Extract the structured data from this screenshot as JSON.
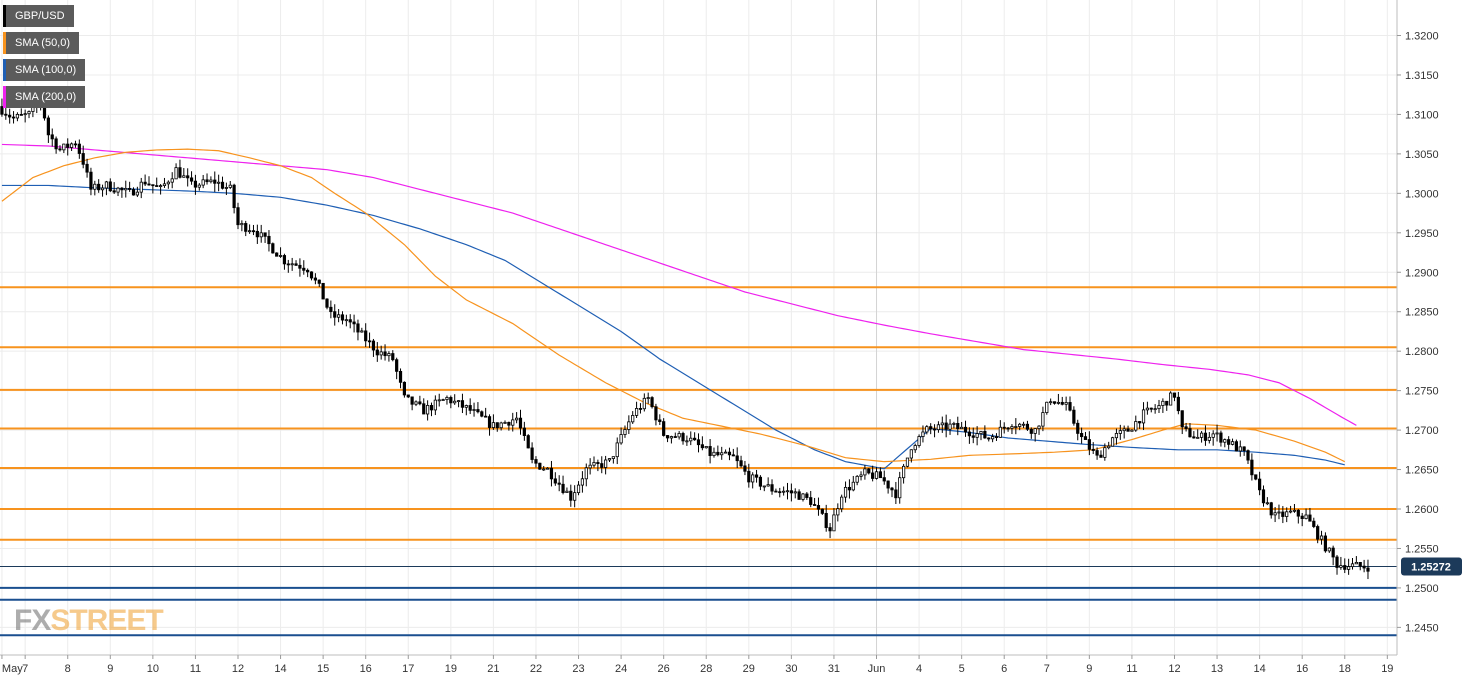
{
  "chart_data": {
    "type": "candlestick",
    "symbol": "GBP/USD",
    "legend": [
      {
        "label": "GBP/USD",
        "color": "#000000"
      },
      {
        "label": "SMA (50,0)",
        "color": "#f7931e"
      },
      {
        "label": "SMA (100,0)",
        "color": "#1f5fb4"
      },
      {
        "label": "SMA (200,0)",
        "color": "#ee22ee"
      }
    ],
    "ylim": [
      1.2415,
      1.3245
    ],
    "y_ticks": [
      "1.3200",
      "1.3150",
      "1.3100",
      "1.3050",
      "1.3000",
      "1.2950",
      "1.2900",
      "1.2850",
      "1.2800",
      "1.2750",
      "1.2700",
      "1.2650",
      "1.2600",
      "1.2550",
      "1.2500",
      "1.2450"
    ],
    "x_ticks": [
      {
        "label": "May",
        "i": 0
      },
      {
        "label": "7",
        "i": 6
      },
      {
        "label": "8",
        "i": 17
      },
      {
        "label": "9",
        "i": 28
      },
      {
        "label": "10",
        "i": 39
      },
      {
        "label": "11",
        "i": 50
      },
      {
        "label": "12",
        "i": 61
      },
      {
        "label": "14",
        "i": 72
      },
      {
        "label": "15",
        "i": 83
      },
      {
        "label": "16",
        "i": 94
      },
      {
        "label": "17",
        "i": 105
      },
      {
        "label": "19",
        "i": 116
      },
      {
        "label": "21",
        "i": 127
      },
      {
        "label": "22",
        "i": 138
      },
      {
        "label": "23",
        "i": 149
      },
      {
        "label": "24",
        "i": 160
      },
      {
        "label": "26",
        "i": 171
      },
      {
        "label": "28",
        "i": 182
      },
      {
        "label": "29",
        "i": 193
      },
      {
        "label": "30",
        "i": 204
      },
      {
        "label": "31",
        "i": 215
      },
      {
        "label": "Jun",
        "i": 226
      },
      {
        "label": "4",
        "i": 237
      },
      {
        "label": "5",
        "i": 248
      },
      {
        "label": "6",
        "i": 259
      },
      {
        "label": "7",
        "i": 270
      },
      {
        "label": "9",
        "i": 281
      },
      {
        "label": "11",
        "i": 292
      },
      {
        "label": "12",
        "i": 303
      },
      {
        "label": "13",
        "i": 314
      },
      {
        "label": "14",
        "i": 325
      },
      {
        "label": "16",
        "i": 336
      },
      {
        "label": "18",
        "i": 347
      },
      {
        "label": "19",
        "i": 358
      }
    ],
    "bar_count": 361,
    "bars_shown": 354,
    "separator_label_index": 226,
    "current_price": "1.25272",
    "current_price_value": 1.25272,
    "horizontal_levels_orange": [
      1.2881,
      1.2805,
      1.2751,
      1.2702,
      1.2652,
      1.26,
      1.2561
    ],
    "horizontal_levels_blue": [
      1.25,
      1.2485,
      1.244
    ],
    "anchors": [
      [
        0,
        1.311
      ],
      [
        4,
        1.3095
      ],
      [
        8,
        1.31
      ],
      [
        11,
        1.312
      ],
      [
        13,
        1.3075
      ],
      [
        16,
        1.3055
      ],
      [
        18,
        1.306
      ],
      [
        20,
        1.3065
      ],
      [
        22,
        1.304
      ],
      [
        24,
        1.3005
      ],
      [
        28,
        1.301
      ],
      [
        34,
        1.3
      ],
      [
        38,
        1.3015
      ],
      [
        42,
        1.3005
      ],
      [
        46,
        1.303
      ],
      [
        50,
        1.301
      ],
      [
        56,
        1.3015
      ],
      [
        60,
        1.3005
      ],
      [
        62,
        1.296
      ],
      [
        66,
        1.2955
      ],
      [
        70,
        1.2935
      ],
      [
        74,
        1.2915
      ],
      [
        80,
        1.2905
      ],
      [
        83,
        1.288
      ],
      [
        86,
        1.2845
      ],
      [
        90,
        1.284
      ],
      [
        94,
        1.282
      ],
      [
        98,
        1.28
      ],
      [
        102,
        1.279
      ],
      [
        105,
        1.274
      ],
      [
        110,
        1.2725
      ],
      [
        116,
        1.274
      ],
      [
        122,
        1.2725
      ],
      [
        128,
        1.2705
      ],
      [
        134,
        1.2715
      ],
      [
        138,
        1.266
      ],
      [
        142,
        1.265
      ],
      [
        148,
        1.2615
      ],
      [
        152,
        1.265
      ],
      [
        158,
        1.266
      ],
      [
        164,
        1.272
      ],
      [
        168,
        1.274
      ],
      [
        172,
        1.2695
      ],
      [
        178,
        1.269
      ],
      [
        184,
        1.267
      ],
      [
        190,
        1.2665
      ],
      [
        194,
        1.264
      ],
      [
        200,
        1.2625
      ],
      [
        206,
        1.262
      ],
      [
        210,
        1.261
      ],
      [
        215,
        1.2575
      ],
      [
        218,
        1.262
      ],
      [
        224,
        1.2645
      ],
      [
        228,
        1.264
      ],
      [
        232,
        1.262
      ],
      [
        236,
        1.268
      ],
      [
        240,
        1.27
      ],
      [
        246,
        1.2705
      ],
      [
        250,
        1.27
      ],
      [
        256,
        1.269
      ],
      [
        262,
        1.271
      ],
      [
        268,
        1.27
      ],
      [
        272,
        1.274
      ],
      [
        276,
        1.273
      ],
      [
        280,
        1.269
      ],
      [
        284,
        1.2665
      ],
      [
        288,
        1.269
      ],
      [
        292,
        1.27
      ],
      [
        296,
        1.272
      ],
      [
        300,
        1.273
      ],
      [
        304,
        1.2745
      ],
      [
        306,
        1.27
      ],
      [
        310,
        1.269
      ],
      [
        314,
        1.2695
      ],
      [
        318,
        1.2685
      ],
      [
        322,
        1.267
      ],
      [
        326,
        1.262
      ],
      [
        330,
        1.259
      ],
      [
        334,
        1.2595
      ],
      [
        338,
        1.259
      ],
      [
        342,
        1.256
      ],
      [
        346,
        1.253
      ],
      [
        350,
        1.2528
      ],
      [
        353,
        1.2527
      ]
    ],
    "sma50": [
      [
        0,
        1.299
      ],
      [
        8,
        1.302
      ],
      [
        16,
        1.3035
      ],
      [
        24,
        1.3045
      ],
      [
        32,
        1.3052
      ],
      [
        40,
        1.3055
      ],
      [
        48,
        1.3056
      ],
      [
        56,
        1.3054
      ],
      [
        64,
        1.3045
      ],
      [
        72,
        1.3035
      ],
      [
        80,
        1.302
      ],
      [
        86,
        1.3
      ],
      [
        94,
        1.2975
      ],
      [
        104,
        1.2935
      ],
      [
        112,
        1.2895
      ],
      [
        120,
        1.2865
      ],
      [
        132,
        1.2835
      ],
      [
        144,
        1.2795
      ],
      [
        156,
        1.276
      ],
      [
        166,
        1.2735
      ],
      [
        176,
        1.2715
      ],
      [
        186,
        1.2705
      ],
      [
        196,
        1.2695
      ],
      [
        208,
        1.268
      ],
      [
        218,
        1.2665
      ],
      [
        228,
        1.266
      ],
      [
        240,
        1.2663
      ],
      [
        250,
        1.2668
      ],
      [
        262,
        1.267
      ],
      [
        272,
        1.2672
      ],
      [
        282,
        1.2675
      ],
      [
        292,
        1.2688
      ],
      [
        300,
        1.27
      ],
      [
        306,
        1.2708
      ],
      [
        314,
        1.2706
      ],
      [
        324,
        1.27
      ],
      [
        334,
        1.2686
      ],
      [
        342,
        1.2672
      ],
      [
        347,
        1.266
      ]
    ],
    "sma100": [
      [
        0,
        1.301
      ],
      [
        12,
        1.301
      ],
      [
        24,
        1.3007
      ],
      [
        36,
        1.3005
      ],
      [
        48,
        1.3003
      ],
      [
        60,
        1.3
      ],
      [
        72,
        1.2995
      ],
      [
        84,
        1.2985
      ],
      [
        96,
        1.2972
      ],
      [
        108,
        1.2955
      ],
      [
        120,
        1.2935
      ],
      [
        130,
        1.2915
      ],
      [
        140,
        1.2885
      ],
      [
        150,
        1.2855
      ],
      [
        160,
        1.2825
      ],
      [
        170,
        1.279
      ],
      [
        180,
        1.276
      ],
      [
        190,
        1.273
      ],
      [
        200,
        1.27
      ],
      [
        210,
        1.2675
      ],
      [
        218,
        1.266
      ],
      [
        228,
        1.2651
      ],
      [
        240,
        1.2702
      ],
      [
        250,
        1.2697
      ],
      [
        260,
        1.269
      ],
      [
        270,
        1.2686
      ],
      [
        280,
        1.2682
      ],
      [
        292,
        1.2678
      ],
      [
        304,
        1.2675
      ],
      [
        314,
        1.2675
      ],
      [
        324,
        1.2672
      ],
      [
        334,
        1.2668
      ],
      [
        342,
        1.2662
      ],
      [
        347,
        1.2656
      ]
    ],
    "sma200": [
      [
        0,
        1.3062
      ],
      [
        12,
        1.306
      ],
      [
        24,
        1.3055
      ],
      [
        36,
        1.305
      ],
      [
        48,
        1.3045
      ],
      [
        60,
        1.304
      ],
      [
        72,
        1.3035
      ],
      [
        84,
        1.303
      ],
      [
        96,
        1.302
      ],
      [
        108,
        1.3005
      ],
      [
        120,
        1.299
      ],
      [
        132,
        1.2975
      ],
      [
        144,
        1.2955
      ],
      [
        156,
        1.2935
      ],
      [
        168,
        1.2915
      ],
      [
        180,
        1.2895
      ],
      [
        192,
        1.2875
      ],
      [
        204,
        1.286
      ],
      [
        216,
        1.2845
      ],
      [
        228,
        1.2833
      ],
      [
        240,
        1.2822
      ],
      [
        252,
        1.2812
      ],
      [
        264,
        1.2802
      ],
      [
        276,
        1.2796
      ],
      [
        288,
        1.279
      ],
      [
        300,
        1.2783
      ],
      [
        312,
        1.2777
      ],
      [
        322,
        1.277
      ],
      [
        330,
        1.276
      ],
      [
        338,
        1.274
      ],
      [
        346,
        1.2717
      ],
      [
        350,
        1.2706
      ]
    ]
  },
  "watermark": {
    "fx": "FX",
    "street": "STREET"
  }
}
